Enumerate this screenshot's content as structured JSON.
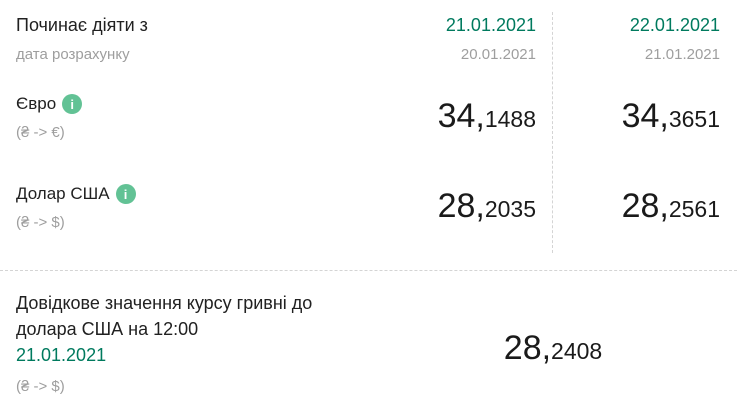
{
  "colors": {
    "accent_green": "#007a5e",
    "info_icon_green": "#62c295",
    "muted_gray": "#9e9e9e",
    "text_dark": "#212121",
    "divider_gray": "#d4d4d4"
  },
  "header": {
    "title": "Починає діяти з",
    "subtitle": "дата розрахунку"
  },
  "date_columns": [
    {
      "effective_date": "21.01.2021",
      "calc_date": "20.01.2021"
    },
    {
      "effective_date": "22.01.2021",
      "calc_date": "21.01.2021"
    }
  ],
  "rates": [
    {
      "currency": "Євро",
      "pair": "(₴ -> €)",
      "info_icon_glyph": "i",
      "values": [
        {
          "int": "34,",
          "frac": "1488"
        },
        {
          "int": "34,",
          "frac": "3651"
        }
      ]
    },
    {
      "currency": "Долар США",
      "pair": "(₴ -> $)",
      "info_icon_glyph": "i",
      "values": [
        {
          "int": "28,",
          "frac": "2035"
        },
        {
          "int": "28,",
          "frac": "2561"
        }
      ]
    }
  ],
  "reference": {
    "label_lines": [
      "Довідкове значення курсу гривні до",
      "долара США на 12:00"
    ],
    "date": "21.01.2021",
    "pair": "(₴ -> $)",
    "value": {
      "int": "28,",
      "frac": "2408"
    }
  }
}
